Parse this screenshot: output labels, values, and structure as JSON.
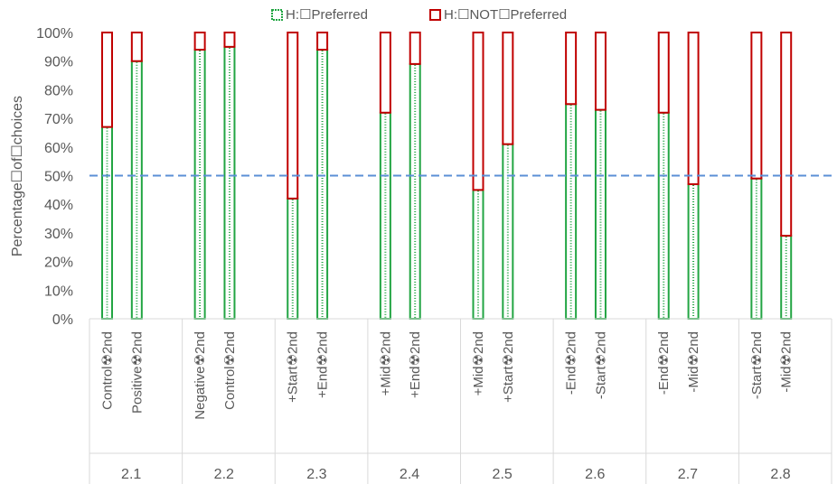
{
  "chart_data": {
    "type": "bar",
    "stacked": true,
    "percent_stacked": true,
    "ylabel": "Percentage☐of☐choices",
    "y_ticks": [
      "0%",
      "10%",
      "20%",
      "30%",
      "40%",
      "50%",
      "60%",
      "70%",
      "80%",
      "90%",
      "100%"
    ],
    "ylim": [
      0,
      100
    ],
    "legend_position": "top",
    "reference_line": {
      "value": 50,
      "style": "dashed",
      "color": "#5B8FD6"
    },
    "groups": [
      "2.1",
      "2.2",
      "2.3",
      "2.4",
      "2.5",
      "2.6",
      "2.7",
      "2.8"
    ],
    "categories": [
      "Control☢2nd",
      "Positive☢2nd",
      "Negative☢2nd",
      "Control☢2nd",
      "+Start☢2nd",
      "+End☢2nd",
      "+Mid☢2nd",
      "+End☢2nd",
      "+Mid☢2nd",
      "+Start☢2nd",
      "-End☢2nd",
      "-Start☢2nd",
      "-End☢2nd",
      "-Mid☢2nd",
      "-Start☢2nd",
      "-Mid☢2nd"
    ],
    "series": [
      {
        "name": "H:⚢Preferred",
        "color": "#22A543",
        "values": [
          67,
          90,
          94,
          95,
          42,
          94,
          72,
          89,
          45,
          61,
          75,
          73,
          72,
          47,
          49,
          29
        ]
      },
      {
        "name": "H:⚢NOT⚢Preferred",
        "color": "#C00000",
        "values": [
          33,
          10,
          6,
          5,
          58,
          6,
          28,
          11,
          55,
          39,
          25,
          27,
          28,
          53,
          51,
          71
        ]
      }
    ]
  },
  "legend": {
    "preferred": "H:☐Preferred",
    "not_preferred": "H:☐NOT☐Preferred"
  },
  "colors": {
    "preferred": "#22A543",
    "not_preferred": "#C00000",
    "reference": "#5B8FD6",
    "axis": "#D9D9D9",
    "text": "#595959"
  }
}
